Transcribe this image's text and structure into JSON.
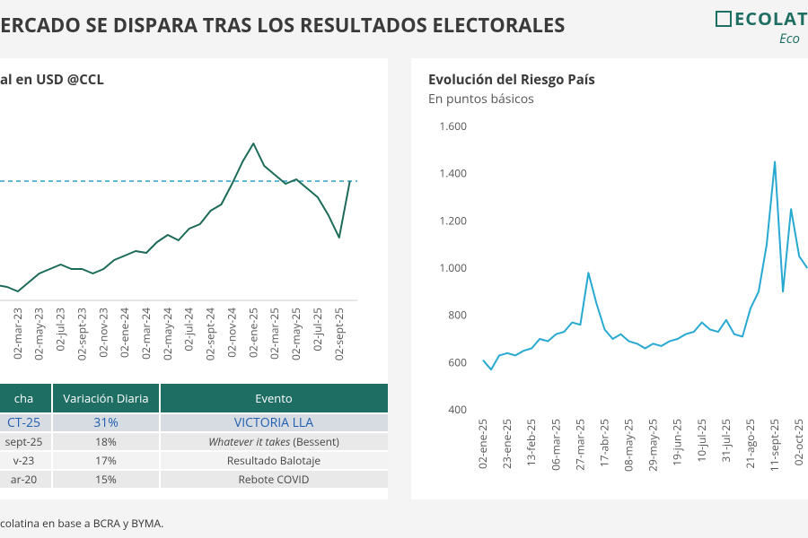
{
  "header": {
    "title": "ERCADO SE DISPARA TRAS LOS RESULTADOS ELECTORALES",
    "logo": "ECOLAT",
    "logo_sub": "Eco"
  },
  "chart_data": [
    {
      "type": "line",
      "title": "al en USD @CCL",
      "color": "#1b6b58",
      "categories": [
        null,
        null,
        "02-mar-23",
        null,
        "02-may-23",
        null,
        "02-jul-23",
        null,
        "02-sept-23",
        null,
        "02-nov-23",
        null,
        "02-ene-24",
        null,
        "02-mar-24",
        null,
        "02-may-24",
        null,
        "02-jul-24",
        null,
        "02-sept-24",
        null,
        "02-nov-24",
        null,
        "02-ene-25",
        null,
        "02-mar-25",
        null,
        "02-may-25",
        null,
        "02-jul-25",
        null,
        "02-sept-25",
        null
      ],
      "values": [
        11,
        10,
        7.5,
        12.5,
        17.5,
        20,
        22.5,
        20,
        20,
        17.5,
        20,
        25,
        27.5,
        30,
        29,
        35,
        39,
        36,
        42.5,
        45,
        52.5,
        56,
        67.5,
        80,
        90,
        77.5,
        72.5,
        67.5,
        70,
        65,
        60,
        50,
        37.5,
        69
      ],
      "reference_line": {
        "value": 69,
        "color": "#2aa0c8",
        "style": "dashed"
      },
      "ylim": [
        0,
        100
      ]
    },
    {
      "type": "line",
      "title": "Evolución del Riesgo País",
      "subtitle": "En puntos básicos",
      "color": "#27a9d1",
      "categories": [
        "02-ene-25",
        null,
        null,
        "23-ene-25",
        null,
        null,
        "13-feb-25",
        null,
        null,
        "06-mar-25",
        null,
        null,
        "27-mar-25",
        null,
        null,
        "17-abr-25",
        null,
        null,
        "08-may-25",
        null,
        null,
        "29-may-25",
        null,
        null,
        "19-jun-25",
        null,
        null,
        "10-jul-25",
        null,
        null,
        "31-jul-25",
        null,
        null,
        "21-ago-25",
        null,
        null,
        "11-sept-25",
        null,
        null,
        "02-oct-25",
        null
      ],
      "values": [
        610,
        570,
        630,
        640,
        630,
        650,
        660,
        700,
        690,
        720,
        730,
        770,
        760,
        980,
        850,
        740,
        700,
        720,
        690,
        680,
        660,
        680,
        670,
        690,
        700,
        720,
        730,
        770,
        740,
        730,
        780,
        720,
        710,
        830,
        900,
        1100,
        1450,
        900,
        1250,
        1050,
        1000
      ],
      "ylim": [
        400,
        1600
      ],
      "yticks": [
        400,
        600,
        800,
        {
          "value": 1000,
          "label": "1.000"
        },
        {
          "value": 1200,
          "label": "1.200"
        },
        {
          "value": 1400,
          "label": "1.400"
        },
        {
          "value": 1600,
          "label": "1.600"
        }
      ]
    }
  ],
  "table": {
    "columns": [
      "cha",
      "Variación Diaria",
      "Evento"
    ],
    "rows": [
      [
        "CT-25",
        "31%",
        "VICTORIA LLA"
      ],
      [
        "sept-25",
        "18%",
        {
          "italic": "Whatever it takes",
          "text": "(Bessent)"
        }
      ],
      [
        "v-23",
        "17%",
        "Resultado Balotaje"
      ],
      [
        "ar-20",
        "15%",
        "Rebote COVID"
      ]
    ]
  },
  "footer": {
    "source": "colatina en base a BCRA y BYMA."
  }
}
